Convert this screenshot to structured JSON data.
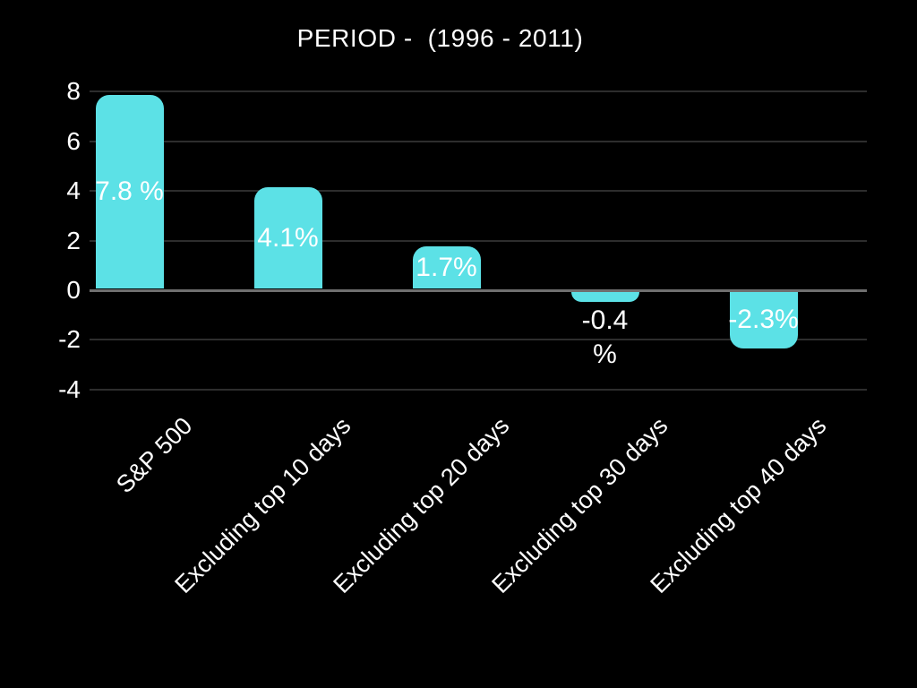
{
  "chart_data": {
    "type": "bar",
    "title": "PERIOD -  (1996 - 2011)",
    "categories": [
      "S&P 500",
      "Excluding top 10 days",
      "Excluding top 20 days",
      "Excluding top 30 days",
      "Excluding top 40 days"
    ],
    "values": [
      7.8,
      4.1,
      1.7,
      -0.4,
      -2.3
    ],
    "data_labels": [
      "7.8 %",
      "4.1%",
      "1.7%",
      "-0.4 %",
      "-2.3%"
    ],
    "unit": "%",
    "xlabel": "",
    "ylabel": "",
    "y_ticks": [
      8,
      6,
      4,
      2,
      0,
      -2,
      -4
    ],
    "ylim": [
      -4.7,
      8.2
    ],
    "grid": "horizontal",
    "legend": "none",
    "x_label_rotation_deg": 45,
    "colors": {
      "bar": "#5CE1E6",
      "background": "#000000",
      "text": "#FFFFFF",
      "data_label_text": "#FFFFFF",
      "gridline": "#2D2D2D",
      "zero_line": "#6F6F6F"
    }
  }
}
